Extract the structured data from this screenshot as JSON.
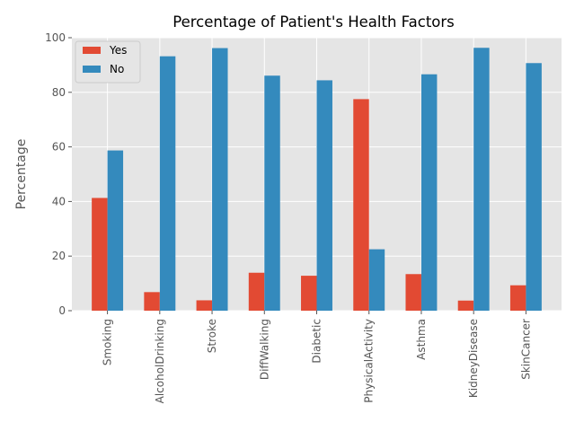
{
  "chart_data": {
    "type": "bar",
    "title": "Percentage of Patient's Health Factors",
    "xlabel": "",
    "ylabel": "Percentage",
    "ylim": [
      0,
      100
    ],
    "yticks": [
      0,
      20,
      40,
      60,
      80,
      100
    ],
    "grid": true,
    "legend_position": "top-left",
    "categories": [
      "Smoking",
      "AlcoholDrinking",
      "Stroke",
      "DiffWalking",
      "Diabetic",
      "PhysicalActivity",
      "Asthma",
      "KidneyDisease",
      "SkinCancer"
    ],
    "series": [
      {
        "name": "Yes",
        "color": "#E24A33",
        "values": [
          41.3,
          6.8,
          3.8,
          13.9,
          12.8,
          77.5,
          13.4,
          3.7,
          9.3
        ]
      },
      {
        "name": "No",
        "color": "#348ABD",
        "values": [
          58.7,
          93.2,
          96.2,
          86.1,
          84.4,
          22.5,
          86.6,
          96.3,
          90.7
        ]
      }
    ]
  }
}
